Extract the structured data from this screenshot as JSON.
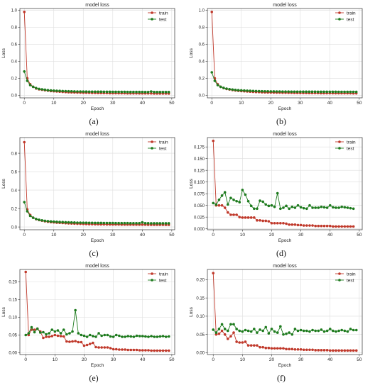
{
  "colors": {
    "train": "#c0392b",
    "test": "#1e7b1e"
  },
  "chart_data": [
    {
      "type": "line",
      "caption": "(a)",
      "title": "model loss",
      "xlabel": "Epoch",
      "ylabel": "Loss",
      "xlim": [
        -1.5,
        51
      ],
      "ylim": [
        -0.03,
        1.02
      ],
      "xticks": [
        0,
        10,
        20,
        30,
        40,
        50
      ],
      "yticks": [
        0.0,
        0.2,
        0.4,
        0.6,
        0.8,
        1.0
      ],
      "ytick_labels": [
        "0.0",
        "0.2",
        "0.4",
        "0.6",
        "0.8",
        "1.0"
      ],
      "grid": true,
      "legend": "top-right",
      "series": [
        {
          "name": "train",
          "color": "#c0392b",
          "values": [
            0.98,
            0.2,
            0.13,
            0.1,
            0.08,
            0.07,
            0.065,
            0.06,
            0.055,
            0.05,
            0.047,
            0.045,
            0.043,
            0.04,
            0.038,
            0.036,
            0.035,
            0.034,
            0.032,
            0.031,
            0.03,
            0.03,
            0.029,
            0.028,
            0.028,
            0.027,
            0.027,
            0.026,
            0.026,
            0.025,
            0.025,
            0.025,
            0.024,
            0.024,
            0.024,
            0.023,
            0.023,
            0.023,
            0.023,
            0.022,
            0.022,
            0.022,
            0.022,
            0.022,
            0.021,
            0.021,
            0.021,
            0.021,
            0.021,
            0.02
          ]
        },
        {
          "name": "test",
          "color": "#1e7b1e",
          "values": [
            0.28,
            0.17,
            0.12,
            0.1,
            0.085,
            0.075,
            0.07,
            0.065,
            0.06,
            0.057,
            0.055,
            0.053,
            0.052,
            0.05,
            0.049,
            0.048,
            0.047,
            0.046,
            0.045,
            0.045,
            0.044,
            0.044,
            0.043,
            0.043,
            0.042,
            0.042,
            0.042,
            0.041,
            0.041,
            0.041,
            0.04,
            0.04,
            0.04,
            0.04,
            0.04,
            0.039,
            0.039,
            0.039,
            0.039,
            0.039,
            0.039,
            0.038,
            0.038,
            0.045,
            0.038,
            0.038,
            0.038,
            0.038,
            0.038,
            0.038
          ]
        }
      ]
    },
    {
      "type": "line",
      "caption": "(b)",
      "title": "model loss",
      "xlabel": "Epoch",
      "ylabel": "Loss",
      "xlim": [
        -1.5,
        51
      ],
      "ylim": [
        -0.03,
        1.02
      ],
      "xticks": [
        0,
        10,
        20,
        30,
        40,
        50
      ],
      "yticks": [
        0.0,
        0.2,
        0.4,
        0.6,
        0.8,
        1.0
      ],
      "ytick_labels": [
        "0.0",
        "0.2",
        "0.4",
        "0.6",
        "0.8",
        "1.0"
      ],
      "grid": true,
      "legend": "top-right",
      "series": [
        {
          "name": "train",
          "color": "#c0392b",
          "values": [
            0.98,
            0.2,
            0.13,
            0.1,
            0.085,
            0.075,
            0.068,
            0.062,
            0.057,
            0.053,
            0.05,
            0.047,
            0.045,
            0.043,
            0.041,
            0.039,
            0.038,
            0.036,
            0.035,
            0.034,
            0.033,
            0.032,
            0.031,
            0.031,
            0.03,
            0.03,
            0.029,
            0.029,
            0.028,
            0.028,
            0.027,
            0.027,
            0.027,
            0.026,
            0.026,
            0.026,
            0.026,
            0.025,
            0.025,
            0.025,
            0.025,
            0.025,
            0.024,
            0.024,
            0.024,
            0.024,
            0.024,
            0.024,
            0.023,
            0.023
          ]
        },
        {
          "name": "test",
          "color": "#1e7b1e",
          "values": [
            0.27,
            0.17,
            0.12,
            0.1,
            0.087,
            0.078,
            0.072,
            0.067,
            0.063,
            0.06,
            0.058,
            0.056,
            0.054,
            0.053,
            0.051,
            0.05,
            0.049,
            0.048,
            0.047,
            0.047,
            0.046,
            0.046,
            0.045,
            0.045,
            0.044,
            0.044,
            0.044,
            0.043,
            0.043,
            0.043,
            0.043,
            0.042,
            0.042,
            0.042,
            0.042,
            0.042,
            0.041,
            0.041,
            0.041,
            0.041,
            0.041,
            0.041,
            0.041,
            0.04,
            0.04,
            0.04,
            0.04,
            0.04,
            0.04,
            0.04
          ]
        }
      ]
    },
    {
      "type": "line",
      "caption": "(c)",
      "title": "model loss",
      "xlabel": "Epoch",
      "ylabel": "Loss",
      "xlim": [
        -1.5,
        51
      ],
      "ylim": [
        -0.03,
        0.97
      ],
      "xticks": [
        0,
        10,
        20,
        30,
        40,
        50
      ],
      "yticks": [
        0.0,
        0.2,
        0.4,
        0.6,
        0.8
      ],
      "ytick_labels": [
        "0.0",
        "0.2",
        "0.4",
        "0.6",
        "0.8"
      ],
      "grid": true,
      "legend": "top-right",
      "series": [
        {
          "name": "train",
          "color": "#c0392b",
          "values": [
            0.92,
            0.19,
            0.13,
            0.1,
            0.085,
            0.075,
            0.068,
            0.062,
            0.057,
            0.053,
            0.05,
            0.047,
            0.045,
            0.043,
            0.041,
            0.039,
            0.038,
            0.036,
            0.035,
            0.034,
            0.033,
            0.032,
            0.031,
            0.031,
            0.03,
            0.03,
            0.029,
            0.029,
            0.028,
            0.028,
            0.027,
            0.027,
            0.027,
            0.026,
            0.026,
            0.026,
            0.026,
            0.025,
            0.025,
            0.025,
            0.025,
            0.025,
            0.024,
            0.024,
            0.024,
            0.024,
            0.024,
            0.024,
            0.023,
            0.023
          ]
        },
        {
          "name": "test",
          "color": "#1e7b1e",
          "values": [
            0.27,
            0.17,
            0.12,
            0.1,
            0.087,
            0.078,
            0.072,
            0.067,
            0.063,
            0.06,
            0.058,
            0.056,
            0.054,
            0.053,
            0.051,
            0.05,
            0.049,
            0.048,
            0.047,
            0.047,
            0.046,
            0.046,
            0.045,
            0.045,
            0.044,
            0.044,
            0.044,
            0.043,
            0.043,
            0.043,
            0.043,
            0.042,
            0.042,
            0.042,
            0.042,
            0.042,
            0.041,
            0.041,
            0.041,
            0.041,
            0.05,
            0.041,
            0.041,
            0.04,
            0.04,
            0.04,
            0.04,
            0.04,
            0.04,
            0.04
          ]
        }
      ]
    },
    {
      "type": "line",
      "caption": "(d)",
      "title": "model loss",
      "xlabel": "Epoch",
      "ylabel": "Loss",
      "xlim": [
        -2,
        51
      ],
      "ylim": [
        -0.002,
        0.195
      ],
      "xticks": [
        0,
        10,
        20,
        30,
        40,
        50
      ],
      "yticks": [
        0.0,
        0.025,
        0.05,
        0.075,
        0.1,
        0.125,
        0.15,
        0.175
      ],
      "ytick_labels": [
        "0.000",
        "0.025",
        "0.050",
        "0.075",
        "0.100",
        "0.125",
        "0.150",
        "0.175"
      ],
      "grid": true,
      "legend": "top-right",
      "series": [
        {
          "name": "train",
          "color": "#c0392b",
          "values": [
            0.188,
            0.05,
            0.05,
            0.05,
            0.045,
            0.035,
            0.03,
            0.03,
            0.03,
            0.025,
            0.024,
            0.024,
            0.024,
            0.024,
            0.024,
            0.018,
            0.018,
            0.017,
            0.017,
            0.016,
            0.012,
            0.012,
            0.012,
            0.012,
            0.012,
            0.011,
            0.009,
            0.009,
            0.009,
            0.008,
            0.008,
            0.007,
            0.007,
            0.007,
            0.007,
            0.006,
            0.006,
            0.006,
            0.006,
            0.006,
            0.006,
            0.005,
            0.005,
            0.005,
            0.005,
            0.005,
            0.005,
            0.005,
            0.005
          ]
        },
        {
          "name": "test",
          "color": "#1e7b1e",
          "values": [
            0.055,
            0.052,
            0.062,
            0.071,
            0.078,
            0.052,
            0.066,
            0.062,
            0.059,
            0.057,
            0.083,
            0.073,
            0.059,
            0.049,
            0.043,
            0.043,
            0.06,
            0.058,
            0.052,
            0.049,
            0.05,
            0.047,
            0.076,
            0.043,
            0.045,
            0.049,
            0.043,
            0.047,
            0.045,
            0.05,
            0.046,
            0.044,
            0.043,
            0.05,
            0.045,
            0.045,
            0.045,
            0.047,
            0.046,
            0.045,
            0.05,
            0.046,
            0.045,
            0.045,
            0.047,
            0.046,
            0.045,
            0.044,
            0.043
          ]
        }
      ]
    },
    {
      "type": "line",
      "caption": "(e)",
      "title": "model loss",
      "xlabel": "Epoch",
      "ylabel": "Loss",
      "xlim": [
        -2,
        51
      ],
      "ylim": [
        -0.005,
        0.235
      ],
      "xticks": [
        0,
        10,
        20,
        30,
        40,
        50
      ],
      "yticks": [
        0.0,
        0.05,
        0.1,
        0.15,
        0.2
      ],
      "ytick_labels": [
        "0.00",
        "0.05",
        "0.10",
        "0.15",
        "0.20"
      ],
      "grid": true,
      "legend": "top-right",
      "series": [
        {
          "name": "train",
          "color": "#c0392b",
          "values": [
            0.228,
            0.05,
            0.065,
            0.065,
            0.068,
            0.06,
            0.042,
            0.045,
            0.045,
            0.047,
            0.05,
            0.048,
            0.047,
            0.046,
            0.032,
            0.031,
            0.032,
            0.033,
            0.03,
            0.03,
            0.02,
            0.022,
            0.025,
            0.028,
            0.016,
            0.015,
            0.015,
            0.015,
            0.015,
            0.013,
            0.01,
            0.01,
            0.009,
            0.009,
            0.009,
            0.008,
            0.008,
            0.008,
            0.008,
            0.007,
            0.007,
            0.007,
            0.007,
            0.006,
            0.006,
            0.006,
            0.006,
            0.006,
            0.006,
            0.006
          ]
        },
        {
          "name": "test",
          "color": "#1e7b1e",
          "values": [
            0.05,
            0.055,
            0.072,
            0.058,
            0.068,
            0.057,
            0.058,
            0.052,
            0.055,
            0.065,
            0.06,
            0.063,
            0.055,
            0.065,
            0.052,
            0.055,
            0.06,
            0.12,
            0.055,
            0.05,
            0.048,
            0.045,
            0.05,
            0.047,
            0.045,
            0.055,
            0.048,
            0.05,
            0.05,
            0.046,
            0.045,
            0.05,
            0.048,
            0.045,
            0.045,
            0.047,
            0.046,
            0.045,
            0.048,
            0.047,
            0.047,
            0.046,
            0.045,
            0.047,
            0.045,
            0.045,
            0.046,
            0.047,
            0.045,
            0.046
          ]
        }
      ]
    },
    {
      "type": "line",
      "caption": "(f)",
      "title": "model loss",
      "xlabel": "Epoch",
      "ylabel": "Loss",
      "xlim": [
        -2,
        51
      ],
      "ylim": [
        -0.005,
        0.228
      ],
      "xticks": [
        0,
        10,
        20,
        30,
        40,
        50
      ],
      "yticks": [
        0.0,
        0.05,
        0.1,
        0.15,
        0.2
      ],
      "ytick_labels": [
        "0.00",
        "0.05",
        "0.10",
        "0.15",
        "0.20"
      ],
      "grid": true,
      "legend": "top-right",
      "series": [
        {
          "name": "train",
          "color": "#c0392b",
          "values": [
            0.218,
            0.05,
            0.052,
            0.06,
            0.05,
            0.038,
            0.045,
            0.055,
            0.03,
            0.028,
            0.028,
            0.03,
            0.02,
            0.02,
            0.02,
            0.02,
            0.015,
            0.015,
            0.013,
            0.013,
            0.012,
            0.012,
            0.012,
            0.012,
            0.012,
            0.01,
            0.01,
            0.01,
            0.009,
            0.009,
            0.009,
            0.008,
            0.008,
            0.008,
            0.008,
            0.007,
            0.007,
            0.007,
            0.007,
            0.007,
            0.006,
            0.006,
            0.006,
            0.006,
            0.006,
            0.006,
            0.006,
            0.006,
            0.006,
            0.006
          ]
        },
        {
          "name": "test",
          "color": "#1e7b1e",
          "values": [
            0.063,
            0.055,
            0.065,
            0.078,
            0.065,
            0.06,
            0.078,
            0.078,
            0.065,
            0.06,
            0.058,
            0.062,
            0.06,
            0.058,
            0.065,
            0.055,
            0.063,
            0.06,
            0.07,
            0.053,
            0.065,
            0.058,
            0.055,
            0.072,
            0.05,
            0.052,
            0.055,
            0.05,
            0.065,
            0.06,
            0.062,
            0.06,
            0.06,
            0.058,
            0.062,
            0.06,
            0.06,
            0.063,
            0.058,
            0.06,
            0.065,
            0.06,
            0.058,
            0.06,
            0.062,
            0.06,
            0.058,
            0.065,
            0.062,
            0.062
          ]
        }
      ]
    }
  ]
}
